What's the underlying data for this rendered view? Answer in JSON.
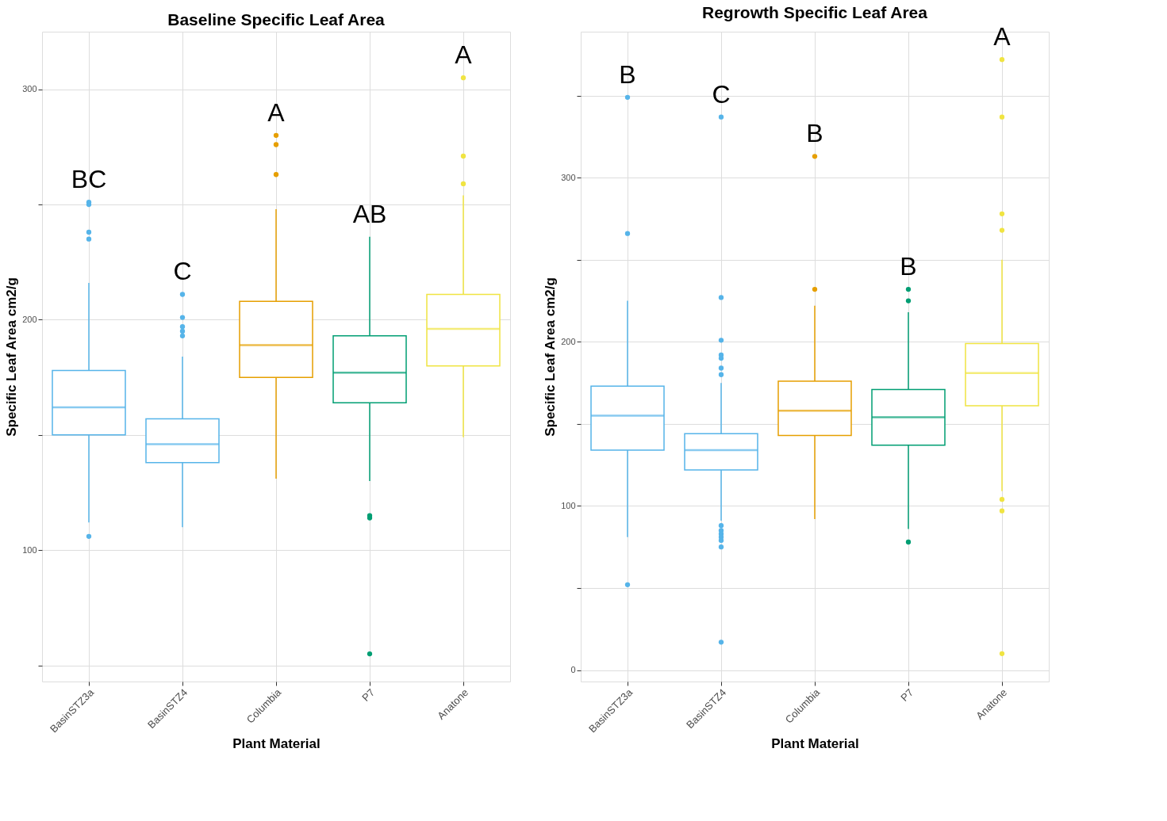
{
  "chart_data": [
    {
      "type": "box",
      "title": "Baseline Specific Leaf Area",
      "xlabel": "Plant Material",
      "ylabel": "Specific Leaf Area cm2/g",
      "categories": [
        "BasinSTZ3a",
        "BasinSTZ4",
        "Columbia",
        "P7",
        "Anatone"
      ],
      "colors": [
        "#56b4e9",
        "#56b4e9",
        "#e69f00",
        "#009e73",
        "#f0e442"
      ],
      "boxes": [
        {
          "low": 112,
          "q1": 150,
          "median": 162,
          "q3": 178,
          "high": 216,
          "outliers": [
            251,
            250,
            238,
            235,
            106
          ]
        },
        {
          "low": 110,
          "q1": 138,
          "median": 146,
          "q3": 157,
          "high": 184,
          "outliers": [
            211,
            201,
            197,
            195,
            193
          ]
        },
        {
          "low": 131,
          "q1": 175,
          "median": 189,
          "q3": 208,
          "high": 248,
          "outliers": [
            280,
            276,
            263
          ]
        },
        {
          "low": 130,
          "q1": 164,
          "median": 177,
          "q3": 193,
          "high": 236,
          "outliers": [
            115,
            114,
            55
          ]
        },
        {
          "low": 149,
          "q1": 180,
          "median": 196,
          "q3": 211,
          "high": 254,
          "outliers": [
            305,
            271,
            259
          ]
        }
      ],
      "ylim": [
        43,
        325
      ],
      "yticks": [
        {
          "value": 50,
          "label": null
        },
        100,
        {
          "value": 150,
          "label": null
        },
        200,
        {
          "value": 250,
          "label": null
        },
        300
      ],
      "grid": true,
      "legend": false,
      "annotations": [
        "BC",
        "C",
        "A",
        "AB",
        "A"
      ]
    },
    {
      "type": "box",
      "title": "Regrowth Specific Leaf Area",
      "xlabel": "Plant Material",
      "ylabel": "Specific Leaf Area cm2/g",
      "categories": [
        "BasinSTZ3a",
        "BasinSTZ4",
        "Columbia",
        "P7",
        "Anatone"
      ],
      "colors": [
        "#56b4e9",
        "#56b4e9",
        "#e69f00",
        "#009e73",
        "#f0e442"
      ],
      "boxes": [
        {
          "low": 81,
          "q1": 134,
          "median": 155,
          "q3": 173,
          "high": 225,
          "outliers": [
            349,
            266,
            52
          ]
        },
        {
          "low": 91,
          "q1": 122,
          "median": 134,
          "q3": 144,
          "high": 175,
          "outliers": [
            337,
            227,
            201,
            192,
            190,
            184,
            180,
            88,
            85,
            83,
            81,
            79,
            75,
            17
          ]
        },
        {
          "low": 92,
          "q1": 143,
          "median": 158,
          "q3": 176,
          "high": 222,
          "outliers": [
            313,
            232
          ]
        },
        {
          "low": 86,
          "q1": 137,
          "median": 154,
          "q3": 171,
          "high": 218,
          "outliers": [
            232,
            225,
            78
          ]
        },
        {
          "low": 109,
          "q1": 161,
          "median": 181,
          "q3": 199,
          "high": 250,
          "outliers": [
            372,
            337,
            278,
            268,
            104,
            97,
            10
          ]
        }
      ],
      "ylim": [
        -7,
        389
      ],
      "yticks": [
        0,
        {
          "value": 50,
          "label": null
        },
        100,
        {
          "value": 150,
          "label": null
        },
        200,
        {
          "value": 250,
          "label": null
        },
        300,
        {
          "value": 350,
          "label": null
        }
      ],
      "grid": true,
      "legend": false,
      "annotations": [
        "B",
        "C",
        "B",
        "B",
        "A"
      ]
    }
  ]
}
